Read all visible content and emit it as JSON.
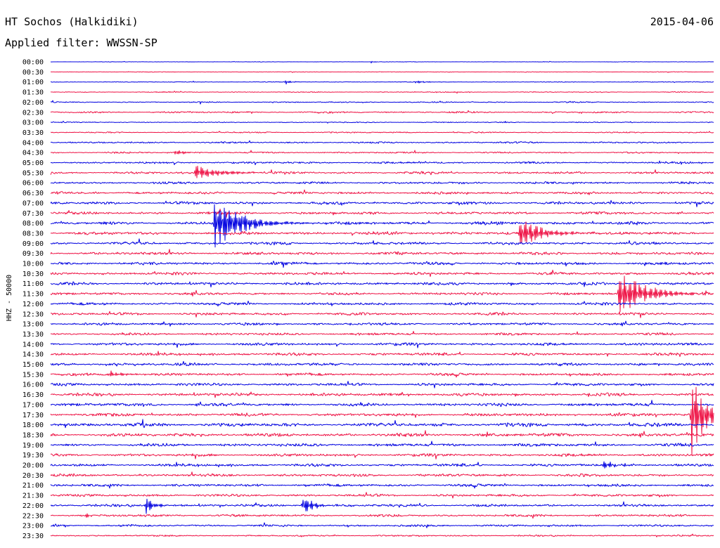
{
  "header": {
    "station": "HT Sochos (Halkidiki)",
    "date": "2015-04-06",
    "filter": "Applied filter: WWSSN-SP"
  },
  "chart_data": {
    "type": "line",
    "chart_kind": "helicorder",
    "ylabel": "HHZ - 50000",
    "row_labels": [
      "00:00",
      "00:30",
      "01:00",
      "01:30",
      "02:00",
      "02:30",
      "03:00",
      "03:30",
      "04:00",
      "04:30",
      "05:00",
      "05:30",
      "06:00",
      "06:30",
      "07:00",
      "07:30",
      "08:00",
      "08:30",
      "09:00",
      "09:30",
      "10:00",
      "10:30",
      "11:00",
      "11:30",
      "12:00",
      "12:30",
      "13:00",
      "13:30",
      "14:00",
      "14:30",
      "15:00",
      "15:30",
      "16:00",
      "16:30",
      "17:00",
      "17:30",
      "18:00",
      "18:30",
      "19:00",
      "19:30",
      "20:00",
      "20:30",
      "21:00",
      "21:30",
      "22:00",
      "22:30",
      "23:00",
      "23:30"
    ],
    "row_minutes": 30,
    "colors": [
      "#0000e0",
      "#ee1144"
    ],
    "grid": false,
    "noise_amplitude": [
      0.3,
      0.4,
      0.5,
      0.6,
      0.8,
      1.2,
      0.7,
      0.9,
      1.2,
      1.1,
      1.4,
      1.6,
      1.6,
      1.8,
      2.0,
      1.9,
      2.2,
      2.2,
      2.0,
      2.1,
      2.0,
      2.0,
      2.0,
      1.9,
      1.9,
      1.9,
      1.8,
      1.8,
      2.0,
      2.0,
      2.0,
      1.9,
      2.0,
      2.2,
      2.2,
      2.2,
      2.6,
      2.4,
      2.2,
      2.0,
      2.0,
      2.0,
      1.9,
      1.8,
      1.8,
      1.7,
      1.5,
      1.1
    ],
    "events": [
      {
        "row": 0,
        "minute": 14.5,
        "amplitude": 2,
        "duration_min": 0.3
      },
      {
        "row": 2,
        "minute": 10.6,
        "amplitude": 4,
        "duration_min": 0.6
      },
      {
        "row": 2,
        "minute": 16.5,
        "amplitude": 3,
        "duration_min": 0.8
      },
      {
        "row": 9,
        "minute": 5.6,
        "amplitude": 6,
        "duration_min": 0.9
      },
      {
        "row": 11,
        "minute": 6.5,
        "amplitude": 12,
        "duration_min": 2.5
      },
      {
        "row": 16,
        "minute": 7.4,
        "amplitude": 45,
        "duration_min": 2.5
      },
      {
        "row": 17,
        "minute": 21.2,
        "amplitude": 22,
        "duration_min": 2.5
      },
      {
        "row": 23,
        "minute": 25.7,
        "amplitude": 38,
        "duration_min": 2.5
      },
      {
        "row": 31,
        "minute": 2.6,
        "amplitude": 6,
        "duration_min": 1.3
      },
      {
        "row": 35,
        "minute": 29.0,
        "amplitude": 60,
        "duration_min": 1.5
      },
      {
        "row": 37,
        "minute": 19.6,
        "amplitude": 6,
        "duration_min": 0.6
      },
      {
        "row": 40,
        "minute": 25.0,
        "amplitude": 6,
        "duration_min": 1.3
      },
      {
        "row": 44,
        "minute": 4.3,
        "amplitude": 14,
        "duration_min": 0.8
      },
      {
        "row": 44,
        "minute": 11.4,
        "amplitude": 16,
        "duration_min": 1.0
      },
      {
        "row": 45,
        "minute": 1.6,
        "amplitude": 6,
        "duration_min": 0.5
      }
    ]
  }
}
